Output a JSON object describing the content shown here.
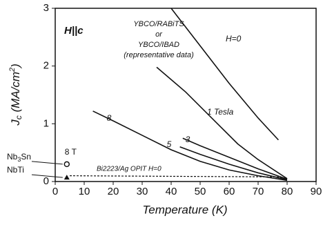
{
  "chart_data": {
    "type": "line",
    "annotation": "H||c",
    "note_lines": [
      "YBCO/RABiTS",
      "or",
      "YBCO/IBAD",
      "(representative data)"
    ],
    "xlabel": "Temperature (K)",
    "ylabel": {
      "main": "J",
      "sub": "c",
      "rest": " (MA/cm",
      "sup": "2",
      "end": ")"
    },
    "xlim": [
      0,
      90
    ],
    "xticks": [
      0,
      10,
      20,
      30,
      40,
      50,
      60,
      70,
      80,
      90
    ],
    "ylim": [
      0,
      3
    ],
    "yticks": [
      0,
      1,
      2,
      3
    ],
    "color": "#111111",
    "series": [
      {
        "name": "H=0",
        "x": [
          40,
          50,
          60,
          70,
          77
        ],
        "values": [
          3.0,
          2.35,
          1.7,
          1.1,
          0.72
        ]
      },
      {
        "name": "1 Tesla",
        "x": [
          35,
          45,
          55,
          63,
          70,
          80
        ],
        "values": [
          1.98,
          1.55,
          1.05,
          0.65,
          0.38,
          0.05
        ]
      },
      {
        "name": "8",
        "x": [
          13,
          20,
          30,
          40,
          50,
          60,
          70,
          80
        ],
        "values": [
          1.22,
          1.05,
          0.8,
          0.55,
          0.35,
          0.2,
          0.1,
          0.02
        ]
      },
      {
        "name": "5",
        "x": [
          43,
          50,
          60,
          70,
          80
        ],
        "values": [
          0.6,
          0.47,
          0.3,
          0.15,
          0.03
        ]
      },
      {
        "name": "3",
        "x": [
          44,
          50,
          60,
          70,
          80
        ],
        "values": [
          0.75,
          0.62,
          0.42,
          0.22,
          0.04
        ]
      },
      {
        "name": "Bi2223/Ag OPIT H=0",
        "x": [
          5,
          77,
          80
        ],
        "values": [
          0.1,
          0.08,
          0.05
        ],
        "dashed": true
      }
    ],
    "points": [
      {
        "label": {
          "main": "Nb",
          "sub": "3",
          "rest": "Sn"
        },
        "field": "8 T",
        "x": 4,
        "y": 0.3,
        "marker": "circle"
      },
      {
        "label": {
          "main": "NbTi"
        },
        "x": 4,
        "y": 0.07,
        "marker": "triangle"
      }
    ]
  }
}
